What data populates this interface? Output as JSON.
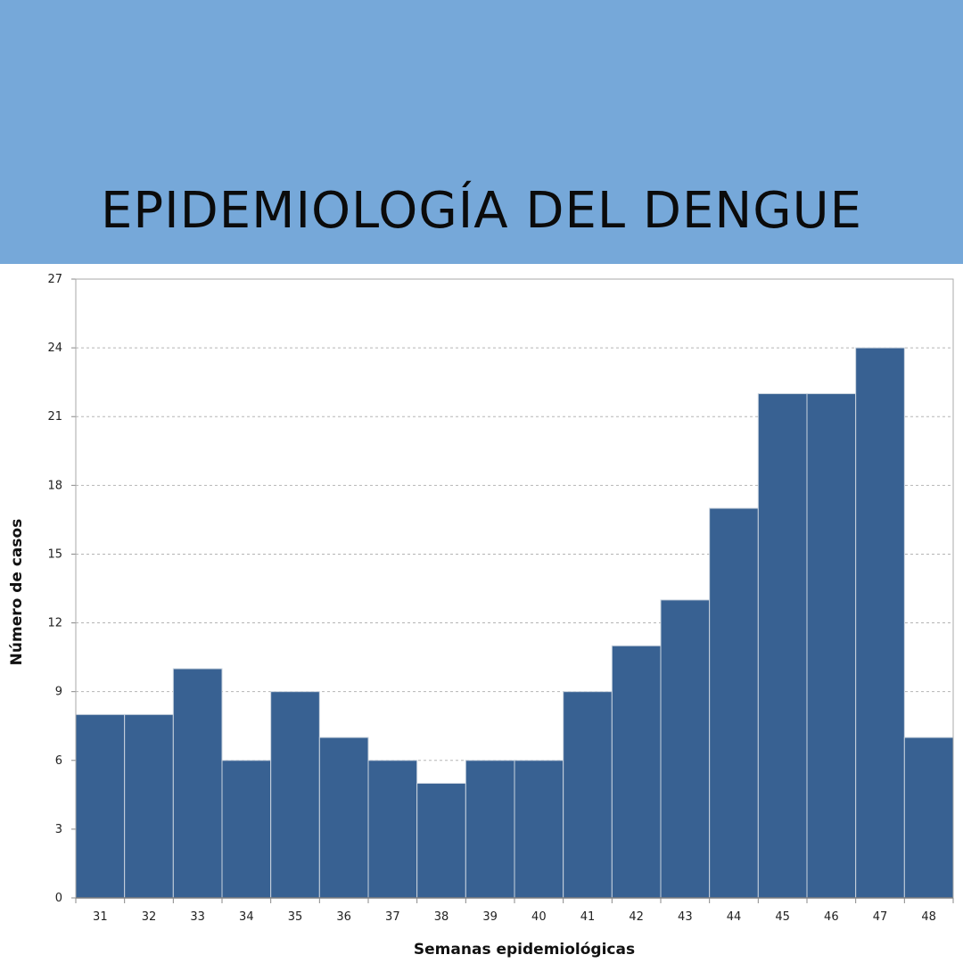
{
  "banner": {
    "title": "EPIDEMIOLOGÍA DEL DENGUE",
    "background": "#76a8d9"
  },
  "chart_data": {
    "type": "bar",
    "categories": [
      "31",
      "32",
      "33",
      "34",
      "35",
      "36",
      "37",
      "38",
      "39",
      "40",
      "41",
      "42",
      "43",
      "44",
      "45",
      "46",
      "47",
      "48"
    ],
    "values": [
      8,
      8,
      10,
      6,
      9,
      7,
      6,
      5,
      6,
      6,
      9,
      11,
      13,
      17,
      22,
      22,
      24,
      7
    ],
    "xlabel": "Semanas epidemiológicas",
    "ylabel": "Número de casos",
    "ylim": [
      0,
      27
    ],
    "yticks": [
      0,
      3,
      6,
      9,
      12,
      15,
      18,
      21,
      24,
      27
    ],
    "grid": true,
    "bar_color": "#386192",
    "bar_edge_color": "#c9d3de"
  }
}
